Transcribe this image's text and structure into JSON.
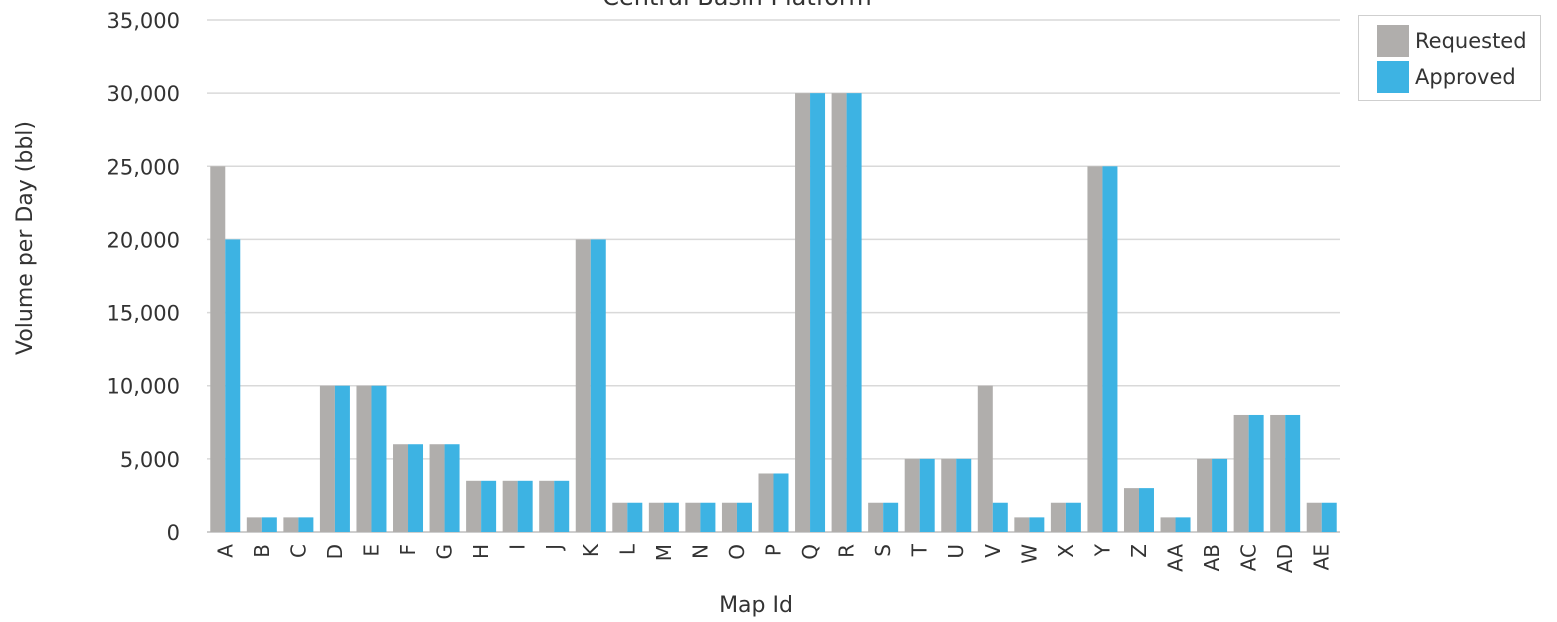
{
  "chart_data": {
    "type": "bar",
    "title": "Central Basin Platform",
    "xlabel": "Map Id",
    "ylabel": "Volume per Day (bbl)",
    "ylim": [
      0,
      35000
    ],
    "yticks": [
      0,
      5000,
      10000,
      15000,
      20000,
      25000,
      30000,
      35000
    ],
    "ytick_labels": [
      "0",
      "5,000",
      "10,000",
      "15,000",
      "20,000",
      "25,000",
      "30,000",
      "35,000"
    ],
    "grid": true,
    "legend_position": "top-right",
    "categories": [
      "A",
      "B",
      "C",
      "D",
      "E",
      "F",
      "G",
      "H",
      "I",
      "J",
      "K",
      "L",
      "M",
      "N",
      "O",
      "P",
      "Q",
      "R",
      "S",
      "T",
      "U",
      "V",
      "W",
      "X",
      "Y",
      "Z",
      "AA",
      "AB",
      "AC",
      "AD",
      "AE"
    ],
    "series": [
      {
        "name": "Requested",
        "color": "#b0aeac",
        "values": [
          25000,
          1000,
          1000,
          10000,
          10000,
          6000,
          6000,
          3500,
          3500,
          3500,
          20000,
          2000,
          2000,
          2000,
          2000,
          4000,
          30000,
          30000,
          2000,
          5000,
          5000,
          10000,
          1000,
          2000,
          25000,
          3000,
          1000,
          5000,
          8000,
          8000,
          2000
        ]
      },
      {
        "name": "Approved",
        "color": "#3db3e3",
        "values": [
          20000,
          1000,
          1000,
          10000,
          10000,
          6000,
          6000,
          3500,
          3500,
          3500,
          20000,
          2000,
          2000,
          2000,
          2000,
          4000,
          30000,
          30000,
          2000,
          5000,
          5000,
          2000,
          1000,
          2000,
          25000,
          3000,
          1000,
          5000,
          8000,
          8000,
          2000
        ]
      }
    ]
  }
}
